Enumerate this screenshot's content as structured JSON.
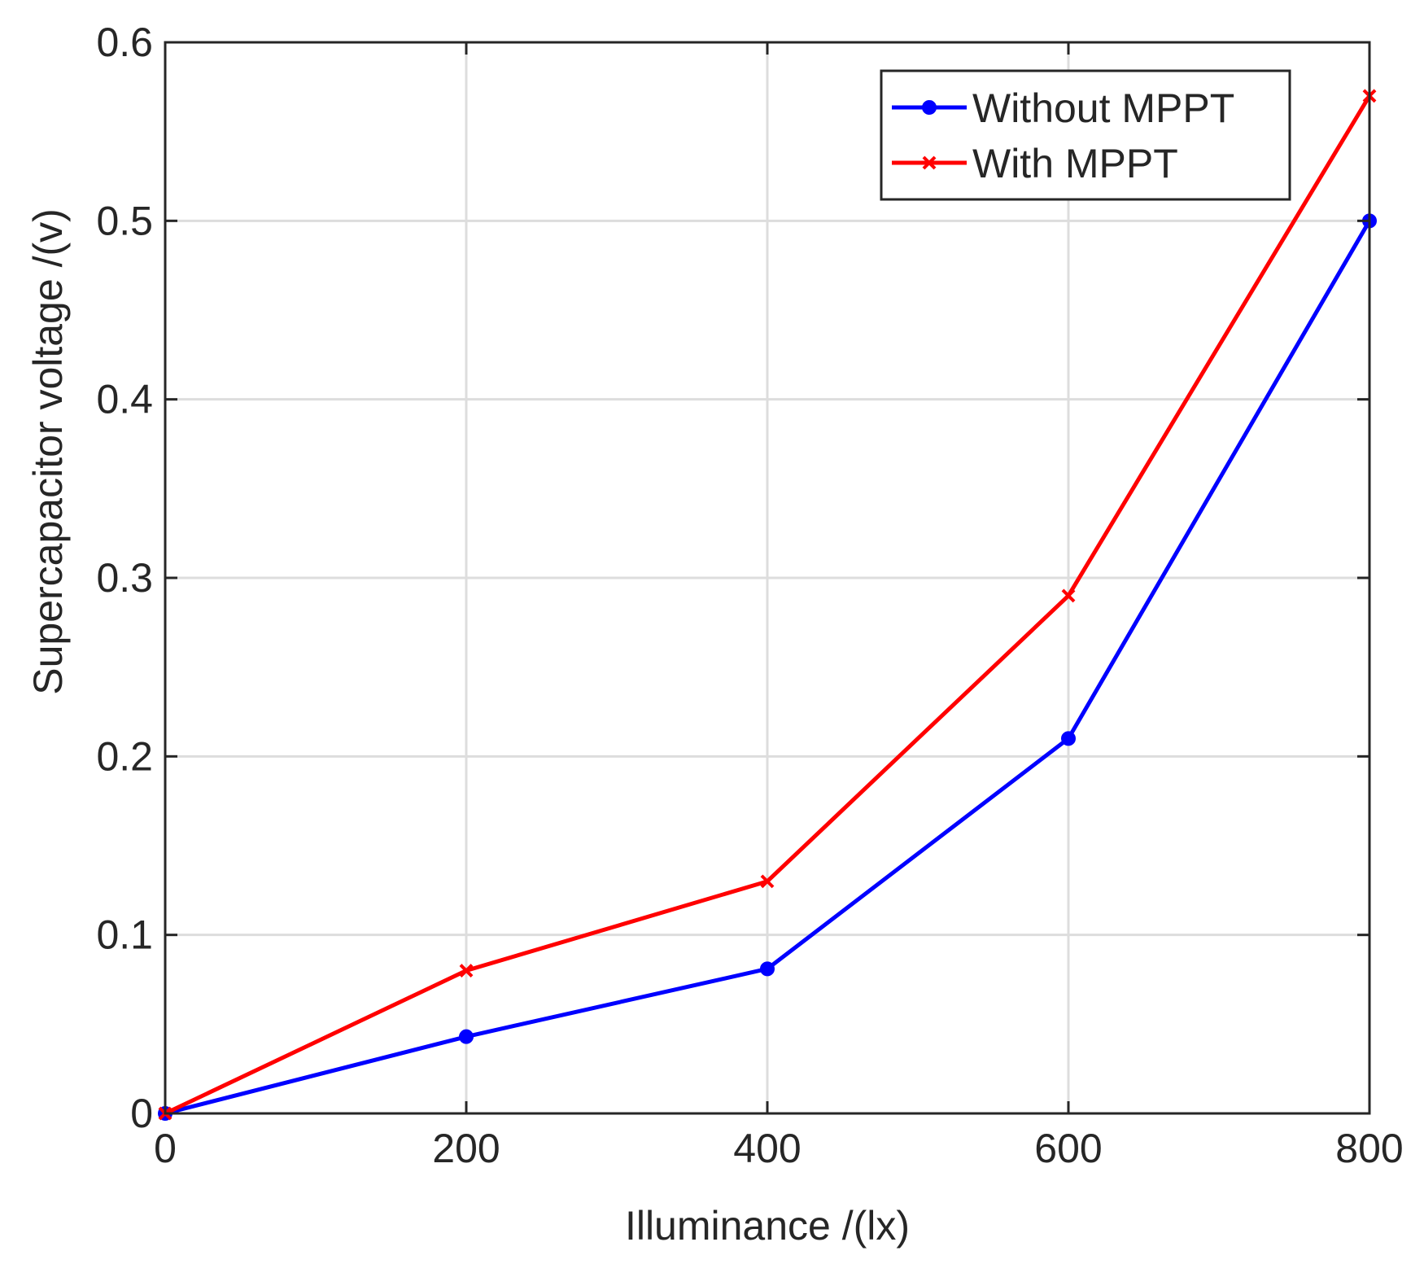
{
  "chart_data": {
    "type": "line",
    "title": "",
    "xlabel": "Illuminance /(lx)",
    "ylabel": "Supercapacitor voltage /(v)",
    "xlim": [
      0,
      800
    ],
    "ylim": [
      0,
      0.6
    ],
    "x_ticks": [
      0,
      200,
      400,
      600,
      800
    ],
    "x_tick_labels": [
      "0",
      "200",
      "400",
      "600",
      "800"
    ],
    "y_ticks": [
      0,
      0.1,
      0.2,
      0.3,
      0.4,
      0.5,
      0.6
    ],
    "y_tick_labels": [
      "0",
      "0.1",
      "0.2",
      "0.3",
      "0.4",
      "0.5",
      "0.6"
    ],
    "grid": true,
    "legend_position": "top-right",
    "x": [
      0,
      200,
      400,
      600,
      800
    ],
    "series": [
      {
        "name": "Without MPPT",
        "color": "#0000ff",
        "marker": "circle",
        "values": [
          0,
          0.043,
          0.081,
          0.21,
          0.5
        ]
      },
      {
        "name": "With MPPT",
        "color": "#ff0000",
        "marker": "x",
        "values": [
          0,
          0.08,
          0.13,
          0.29,
          0.57
        ]
      }
    ]
  }
}
